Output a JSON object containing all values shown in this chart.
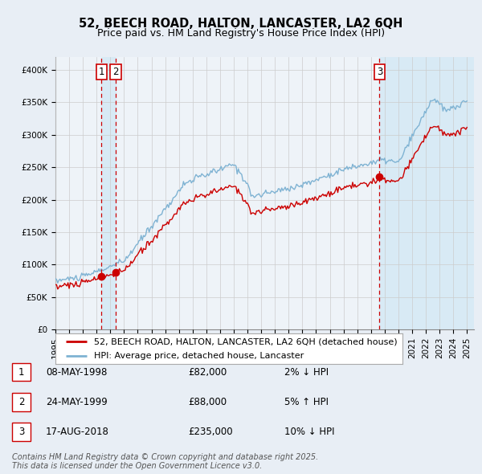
{
  "title": "52, BEECH ROAD, HALTON, LANCASTER, LA2 6QH",
  "subtitle": "Price paid vs. HM Land Registry's House Price Index (HPI)",
  "ylim": [
    0,
    420000
  ],
  "yticks": [
    0,
    50000,
    100000,
    150000,
    200000,
    250000,
    300000,
    350000,
    400000
  ],
  "ytick_labels": [
    "£0",
    "£50K",
    "£100K",
    "£150K",
    "£200K",
    "£250K",
    "£300K",
    "£350K",
    "£400K"
  ],
  "sale_color": "#cc0000",
  "hpi_color": "#7fb3d3",
  "shade_color": "#d8eaf5",
  "background_color": "#e8eef5",
  "plot_bg_color": "#eef3f8",
  "grid_color": "#cccccc",
  "legend_box_color": "#ffffff",
  "legend_border_color": "#aaaaaa",
  "legend_label_sale": "52, BEECH ROAD, HALTON, LANCASTER, LA2 6QH (detached house)",
  "legend_label_hpi": "HPI: Average price, detached house, Lancaster",
  "sale_transactions": [
    {
      "date": 1998.36,
      "price": 82000,
      "label": "1"
    },
    {
      "date": 1999.39,
      "price": 88000,
      "label": "2"
    },
    {
      "date": 2018.63,
      "price": 235000,
      "label": "3"
    }
  ],
  "transaction_table": [
    {
      "num": "1",
      "date": "08-MAY-1998",
      "price": "£82,000",
      "hpi": "2% ↓ HPI"
    },
    {
      "num": "2",
      "date": "24-MAY-1999",
      "price": "£88,000",
      "hpi": "5% ↑ HPI"
    },
    {
      "num": "3",
      "date": "17-AUG-2018",
      "price": "£235,000",
      "hpi": "10% ↓ HPI"
    }
  ],
  "footer": "Contains HM Land Registry data © Crown copyright and database right 2025.\nThis data is licensed under the Open Government Licence v3.0.",
  "title_fontsize": 10.5,
  "subtitle_fontsize": 9,
  "axis_fontsize": 7.5,
  "legend_fontsize": 8,
  "table_fontsize": 8.5,
  "footer_fontsize": 7
}
